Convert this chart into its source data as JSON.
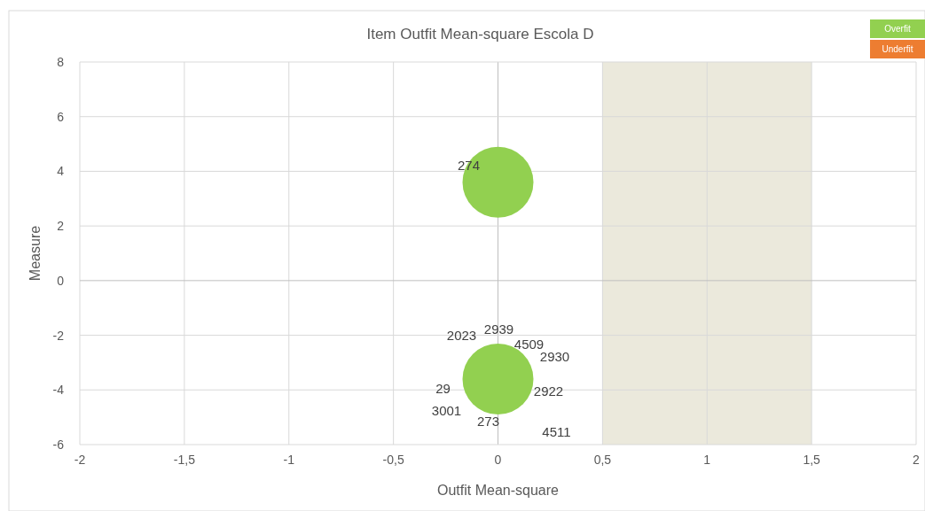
{
  "chart_data": {
    "type": "bubble",
    "title": "Item  Outfit Mean-square Escola D",
    "xlabel": "Outfit Mean-square",
    "ylabel": "Measure",
    "x": [
      0,
      0
    ],
    "series": [
      {
        "name": "Overfit",
        "color": "#92d050",
        "values": [
          3.6,
          -3.6
        ],
        "sizes": [
          1,
          1
        ]
      },
      {
        "name": "Underfit",
        "color": "#ed7d31",
        "values": [
          null,
          null
        ],
        "sizes": [
          null,
          null
        ]
      }
    ],
    "xlim": [
      -2,
      2
    ],
    "ylim": [
      -6,
      8
    ],
    "xticks": [
      {
        "value": -2,
        "label": "-2"
      },
      {
        "value": -1.5,
        "label": "-1,5"
      },
      {
        "value": -1,
        "label": "-1"
      },
      {
        "value": -0.5,
        "label": "-0,5"
      },
      {
        "value": 0,
        "label": "0"
      },
      {
        "value": 0.5,
        "label": "0,5"
      },
      {
        "value": 1,
        "label": "1"
      },
      {
        "value": 1.5,
        "label": "1,5"
      },
      {
        "value": 2,
        "label": "2"
      }
    ],
    "yticks": [
      -6,
      -4,
      -2,
      0,
      2,
      4,
      6,
      8
    ],
    "bands": [
      {
        "axis": "x",
        "from": 0.5,
        "to": 1.5,
        "color": "#ebe9dc"
      }
    ],
    "annotations": [
      "274",
      "2939",
      "2023",
      "4509",
      "2930",
      "29",
      "2922",
      "3001",
      "273",
      "4511"
    ],
    "grid": true,
    "legend": "top right"
  }
}
